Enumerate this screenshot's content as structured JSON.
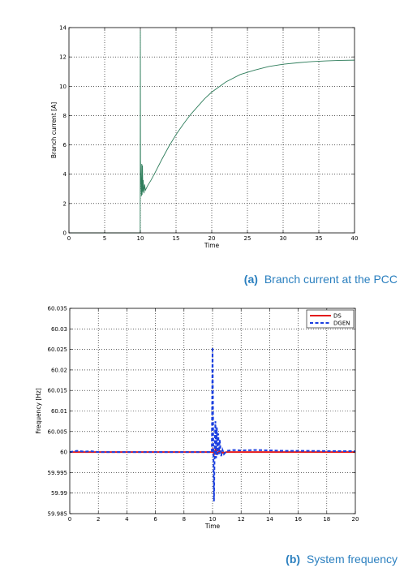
{
  "captions": [
    {
      "letter": "(a)",
      "text": "Branch current at the PCC"
    },
    {
      "letter": "(b)",
      "text": "System frequency"
    }
  ],
  "chart_data": [
    {
      "type": "line",
      "xlabel": "Time",
      "ylabel": "Branch current [A]",
      "xlim": [
        0,
        40
      ],
      "ylim": [
        0,
        14
      ],
      "xticks": [
        0,
        5,
        10,
        15,
        20,
        25,
        30,
        35,
        40
      ],
      "yticks": [
        0,
        2,
        4,
        6,
        8,
        10,
        12,
        14
      ],
      "grid": true,
      "line_color": "#2e7d5b",
      "series": [
        {
          "x": [
            0,
            9.98,
            10.0,
            10.02,
            10.08,
            10.15,
            10.2,
            10.25,
            10.3,
            10.35,
            10.4,
            10.5,
            10.6,
            10.7,
            10.8,
            11,
            11.5,
            12,
            13,
            14,
            15,
            16,
            17,
            18,
            19,
            20,
            22,
            24,
            26,
            28,
            30,
            32,
            34,
            36,
            38,
            40
          ],
          "y": [
            0,
            0,
            13.8,
            5.0,
            3.6,
            2.5,
            4.7,
            2.6,
            4.6,
            2.8,
            3.6,
            2.7,
            3.3,
            2.9,
            3.0,
            3.2,
            3.6,
            4.05,
            5.0,
            5.9,
            6.7,
            7.4,
            8.05,
            8.6,
            9.15,
            9.6,
            10.3,
            10.8,
            11.1,
            11.35,
            11.5,
            11.6,
            11.68,
            11.73,
            11.76,
            11.78
          ]
        }
      ]
    },
    {
      "type": "line",
      "xlabel": "Time",
      "ylabel": "Frequency [Hz]",
      "xlim": [
        0,
        20
      ],
      "ylim": [
        59.985,
        60.035
      ],
      "xticks": [
        0,
        2,
        4,
        6,
        8,
        10,
        12,
        14,
        16,
        18,
        20
      ],
      "yticks": [
        59.985,
        59.99,
        59.995,
        60,
        60.005,
        60.01,
        60.015,
        60.02,
        60.025,
        60.03,
        60.035
      ],
      "ytick_labels": [
        "59.985",
        "59.99",
        "59.995",
        "60",
        "60.005",
        "60.01",
        "60.015",
        "60.02",
        "60.025",
        "60.03",
        "60.035"
      ],
      "grid": true,
      "legend": "top-right",
      "series": [
        {
          "name": "DS",
          "color": "#e31a1c",
          "style": "solid",
          "x": [
            0,
            9.95,
            10.0,
            10.1,
            10.2,
            10.35,
            10.5,
            10.7,
            11.0,
            20
          ],
          "y": [
            60.0,
            60.0,
            60.0009,
            59.9994,
            60.0006,
            59.9996,
            60.0003,
            59.9998,
            60.0,
            60.0
          ]
        },
        {
          "name": "DGEN",
          "color": "#1a3fe0",
          "style": "dashed",
          "x": [
            0,
            0.5,
            1.0,
            1.5,
            2,
            9.95,
            10.0,
            10.05,
            10.1,
            10.15,
            10.2,
            10.25,
            10.3,
            10.35,
            10.4,
            10.45,
            10.5,
            10.6,
            10.7,
            10.8,
            11.0,
            11.5,
            12.0,
            13.0,
            14.0,
            15.0,
            16.0,
            20.0
          ],
          "y": [
            60.0,
            60.0003,
            60.0001,
            60.0002,
            60.0,
            60.0,
            60.0255,
            60.002,
            59.988,
            60.001,
            60.0075,
            59.9985,
            60.006,
            59.9993,
            60.0045,
            59.9995,
            60.003,
            59.999,
            60.0005,
            59.9995,
            60.0003,
            60.0005,
            60.0004,
            60.0005,
            60.0004,
            60.0003,
            60.0003,
            60.0002
          ]
        }
      ]
    }
  ]
}
